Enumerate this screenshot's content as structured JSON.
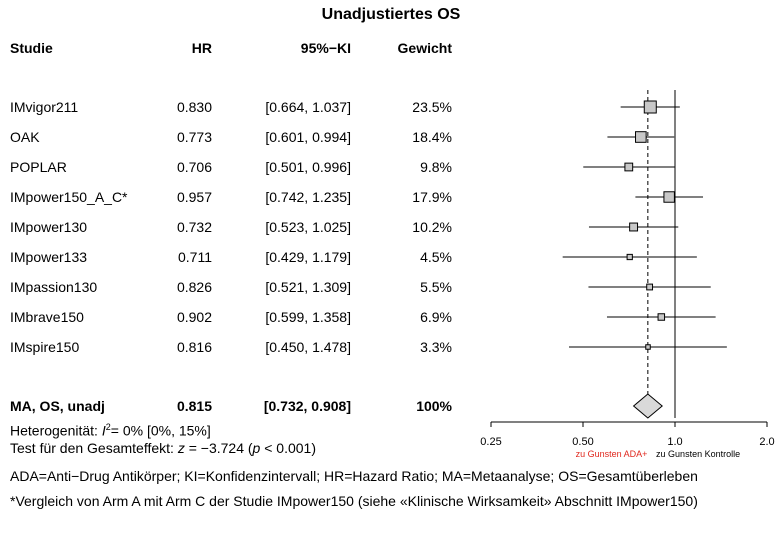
{
  "chart_data": {
    "type": "forest",
    "title": "Unadjustiertes OS",
    "columns": {
      "study": "Studie",
      "hr": "HR",
      "ci": "95%−KI",
      "weight": "Gewicht"
    },
    "studies": [
      {
        "name": "IMvigor211",
        "hr": 0.83,
        "lo": 0.664,
        "hi": 1.037,
        "hr_text": "0.830",
        "ci_text": "[0.664, 1.037]",
        "weight_text": "23.5%",
        "weight": 23.5
      },
      {
        "name": "OAK",
        "hr": 0.773,
        "lo": 0.601,
        "hi": 0.994,
        "hr_text": "0.773",
        "ci_text": "[0.601, 0.994]",
        "weight_text": "18.4%",
        "weight": 18.4
      },
      {
        "name": "POPLAR",
        "hr": 0.706,
        "lo": 0.501,
        "hi": 0.996,
        "hr_text": "0.706",
        "ci_text": "[0.501, 0.996]",
        "weight_text": "9.8%",
        "weight": 9.8
      },
      {
        "name": "IMpower150_A_C*",
        "hr": 0.957,
        "lo": 0.742,
        "hi": 1.235,
        "hr_text": "0.957",
        "ci_text": "[0.742, 1.235]",
        "weight_text": "17.9%",
        "weight": 17.9
      },
      {
        "name": "IMpower130",
        "hr": 0.732,
        "lo": 0.523,
        "hi": 1.025,
        "hr_text": "0.732",
        "ci_text": "[0.523, 1.025]",
        "weight_text": "10.2%",
        "weight": 10.2
      },
      {
        "name": "IMpower133",
        "hr": 0.711,
        "lo": 0.429,
        "hi": 1.179,
        "hr_text": "0.711",
        "ci_text": "[0.429, 1.179]",
        "weight_text": "4.5%",
        "weight": 4.5
      },
      {
        "name": "IMpassion130",
        "hr": 0.826,
        "lo": 0.521,
        "hi": 1.309,
        "hr_text": "0.826",
        "ci_text": "[0.521, 1.309]",
        "weight_text": "5.5%",
        "weight": 5.5
      },
      {
        "name": "IMbrave150",
        "hr": 0.902,
        "lo": 0.599,
        "hi": 1.358,
        "hr_text": "0.902",
        "ci_text": "[0.599, 1.358]",
        "weight_text": "6.9%",
        "weight": 6.9
      },
      {
        "name": "IMspire150",
        "hr": 0.816,
        "lo": 0.45,
        "hi": 1.478,
        "hr_text": "0.816",
        "ci_text": "[0.450, 1.478]",
        "weight_text": "3.3%",
        "weight": 3.3
      }
    ],
    "summary": {
      "name": "MA, OS, unadj",
      "hr": 0.815,
      "lo": 0.732,
      "hi": 0.908,
      "hr_text": "0.815",
      "ci_text": "[0.732, 0.908]",
      "weight_text": "100%"
    },
    "x_axis": {
      "scale": "log",
      "xlim": [
        0.25,
        2.0
      ],
      "ticks": [
        0.25,
        0.5,
        1.0,
        2.0
      ],
      "tick_labels": [
        "0.25",
        "0.50",
        "1.0",
        "2.0"
      ],
      "label_left": "zu Gunsten ADA+",
      "label_right": "zu Gunsten Kontrolle"
    },
    "reference_line": 1.0,
    "summary_line": 0.815,
    "colors": {
      "square_fill": "#c8c8c8",
      "diamond_fill": "#d9d9d9",
      "left_label": "#e0281e",
      "line": "#000000"
    }
  },
  "footnotes": {
    "heterogeneity_prefix": "Heterogenität: ",
    "heterogeneity_symbol": "I",
    "heterogeneity_sup": "2",
    "heterogeneity_rest": "= 0% [0%, 15%]",
    "test_prefix": "Test für den Gesamteffekt: ",
    "test_z": "z",
    "test_value": " = −3.724 (",
    "test_p": "p",
    "test_end": " < 0.001)",
    "abbreviations": "ADA=Anti−Drug Antikörper; KI=Konfidenzintervall; HR=Hazard Ratio; MA=Metaanalyse; OS=Gesamtüberleben",
    "comparison_note": "*Vergleich von Arm A mit Arm C der Studie IMpower150 (siehe «Klinische Wirksamkeit» Abschnitt IMpower150)"
  }
}
